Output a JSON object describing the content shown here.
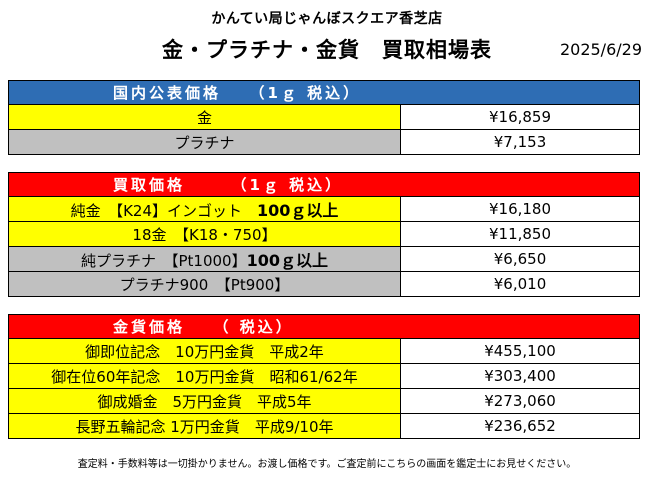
{
  "header": {
    "store_name": "かんてい局じゃんぼスクエア香芝店",
    "title": "金・プラチナ・金貨　買取相場表",
    "date": "2025/6/29"
  },
  "colors": {
    "blue_header": "#2e6db4",
    "red_header": "#ff0000",
    "yellow_cell": "#ffff00",
    "gray_cell": "#c0c0c0"
  },
  "sections": {
    "public_price": {
      "heading": "国内公表価格　　（1ｇ 税込）",
      "rows": [
        {
          "label": "金",
          "price": "¥16,859"
        },
        {
          "label": "プラチナ",
          "price": "¥7,153"
        }
      ]
    },
    "buy_price": {
      "heading": "買取価格　　　（1ｇ 税込）",
      "rows": [
        {
          "label": "純金　【K24】インゴット　",
          "emph": "100ｇ以上",
          "price": "¥16,180"
        },
        {
          "label": "18金　【K18・750】",
          "price": "¥11,850"
        },
        {
          "label": "純プラチナ　【Pt1000】",
          "emph": "100ｇ以上",
          "price": "¥6,650"
        },
        {
          "label": "プラチナ900　【Pt900】",
          "price": "¥6,010"
        }
      ]
    },
    "coin_price": {
      "heading": "金貨価格　　（ 税込）",
      "rows": [
        {
          "label": "御即位記念　10万円金貨　平成2年",
          "price": "¥455,100"
        },
        {
          "label": "御在位60年記念　10万円金貨　昭和61/62年",
          "price": "¥303,400"
        },
        {
          "label": "御成婚金　5万円金貨　平成5年",
          "price": "¥273,060"
        },
        {
          "label": "長野五輪記念 1万円金貨　平成9/10年",
          "price": "¥236,652"
        }
      ]
    }
  },
  "footer": {
    "note": "査定料・手数料等は一切掛かりません。お渡し価格です。ご査定前にこちらの画面を鑑定士にお見せください。"
  }
}
